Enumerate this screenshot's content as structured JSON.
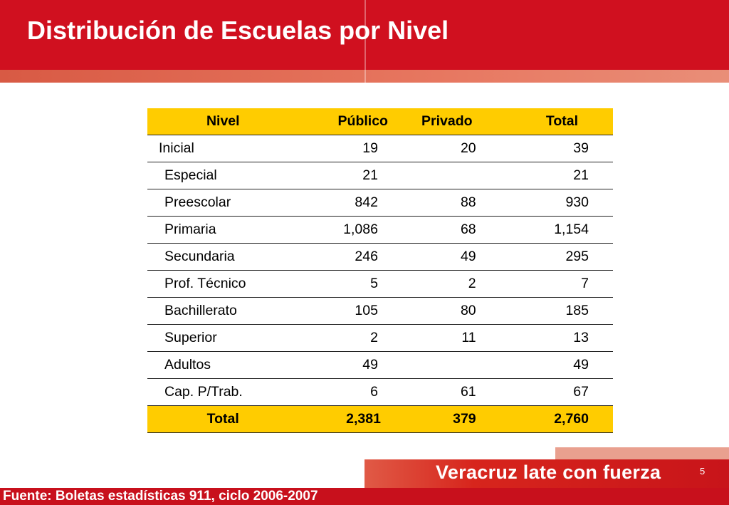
{
  "title": "Distribución de Escuelas por Nivel",
  "colors": {
    "header_red": "#d0101f",
    "table_header_yellow": "#ffcc00"
  },
  "table": {
    "headers": {
      "nivel": "Nivel",
      "publico": "Público",
      "privado": "Privado",
      "total": "Total"
    },
    "rows": [
      {
        "nivel": "Inicial",
        "publico": "19",
        "privado": "20",
        "total": "39"
      },
      {
        "nivel": "Especial",
        "publico": "21",
        "privado": "",
        "total": "21"
      },
      {
        "nivel": "Preescolar",
        "publico": "842",
        "privado": "88",
        "total": "930"
      },
      {
        "nivel": "Primaria",
        "publico": "1,086",
        "privado": "68",
        "total": "1,154"
      },
      {
        "nivel": "Secundaria",
        "publico": "246",
        "privado": "49",
        "total": "295"
      },
      {
        "nivel": "Prof. Técnico",
        "publico": "5",
        "privado": "2",
        "total": "7"
      },
      {
        "nivel": "Bachillerato",
        "publico": "105",
        "privado": "80",
        "total": "185"
      },
      {
        "nivel": "Superior",
        "publico": "2",
        "privado": "11",
        "total": "13"
      },
      {
        "nivel": "Adultos",
        "publico": "49",
        "privado": "",
        "total": "49"
      },
      {
        "nivel": "Cap. P/Trab.",
        "publico": "6",
        "privado": "61",
        "total": "67"
      }
    ],
    "total_row": {
      "nivel": "Total",
      "publico": "2,381",
      "privado": "379",
      "total": "2,760"
    }
  },
  "footer": {
    "slogan": "Veracruz late con fuerza",
    "page_number": "5",
    "source": "Fuente: Boletas estadísticas 911, ciclo 2006-2007"
  }
}
